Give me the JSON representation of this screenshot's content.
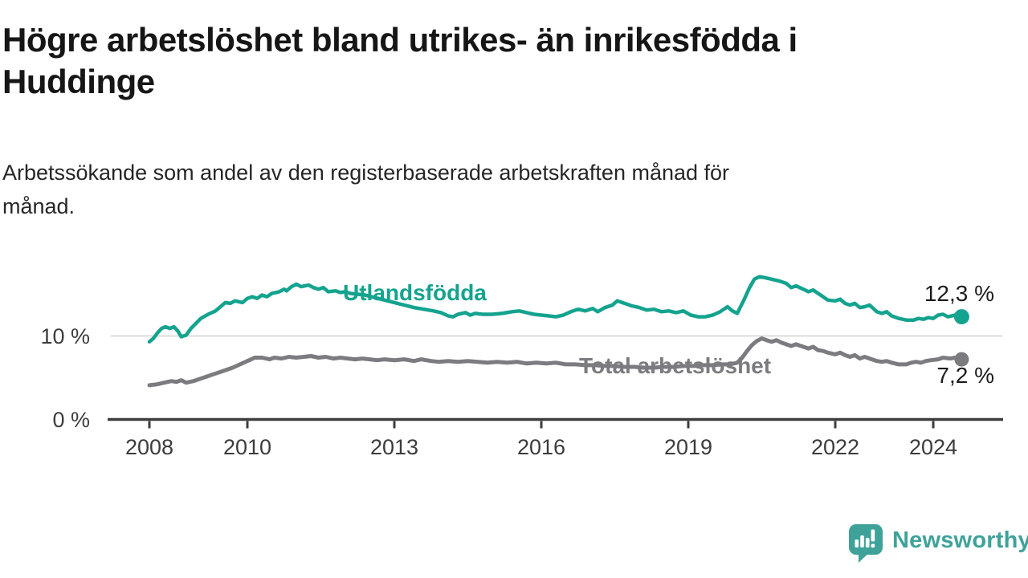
{
  "header": {
    "title": "Högre arbetslöshet bland utrikes- än inrikesfödda i Huddinge",
    "subtitle": "Arbetssökande som andel av den registerbaserade arbetskraften månad för månad."
  },
  "footer": {
    "brand": "Newsworthy"
  },
  "colors": {
    "foreign_born_line": "#14a38e",
    "total_line": "#7b7b80",
    "axis": "#3d3d3d",
    "gridline": "#dcdcdc",
    "tick_text": "#3c3c3c",
    "value_text": "#1c1c1c",
    "logo_teal": "#3fa29a"
  },
  "chart_data": {
    "type": "line",
    "title": "Högre arbetslöshet bland utrikes- än inrikesfödda i Huddinge",
    "subtitle": "Arbetssökande som andel av den registerbaserade arbetskraften månad för månad.",
    "xlabel": "",
    "ylabel": "",
    "x_axis": {
      "ticks": [
        2008,
        2010,
        2013,
        2016,
        2019,
        2022,
        2024
      ],
      "range": [
        2007.1,
        2025.4
      ]
    },
    "y_axis": {
      "ticks": [
        {
          "value": 10,
          "label": "10 %"
        },
        {
          "value": 0,
          "label": "0 %"
        }
      ],
      "range": [
        0,
        19
      ],
      "grid_values": [
        10
      ]
    },
    "legend_position": "inline-labels",
    "series": [
      {
        "name": "Utlandsfödda",
        "label": "Utlandsfödda",
        "end_label": "12,3 %",
        "end_value": 12.3,
        "color": "#14a38e",
        "points": [
          [
            2008.0,
            9.3
          ],
          [
            2008.08,
            9.7
          ],
          [
            2008.17,
            10.4
          ],
          [
            2008.25,
            10.9
          ],
          [
            2008.33,
            11.1
          ],
          [
            2008.42,
            10.9
          ],
          [
            2008.5,
            11.1
          ],
          [
            2008.58,
            10.6
          ],
          [
            2008.65,
            9.9
          ],
          [
            2008.75,
            10.1
          ],
          [
            2008.85,
            10.9
          ],
          [
            2008.95,
            11.5
          ],
          [
            2009.05,
            12.1
          ],
          [
            2009.2,
            12.6
          ],
          [
            2009.35,
            13.0
          ],
          [
            2009.45,
            13.5
          ],
          [
            2009.55,
            14.0
          ],
          [
            2009.65,
            13.9
          ],
          [
            2009.75,
            14.2
          ],
          [
            2009.9,
            14.0
          ],
          [
            2010.0,
            14.5
          ],
          [
            2010.1,
            14.7
          ],
          [
            2010.2,
            14.5
          ],
          [
            2010.3,
            14.9
          ],
          [
            2010.4,
            14.7
          ],
          [
            2010.5,
            15.1
          ],
          [
            2010.65,
            15.3
          ],
          [
            2010.75,
            15.6
          ],
          [
            2010.8,
            15.4
          ],
          [
            2010.9,
            15.9
          ],
          [
            2011.0,
            16.2
          ],
          [
            2011.1,
            15.9
          ],
          [
            2011.25,
            16.1
          ],
          [
            2011.35,
            15.8
          ],
          [
            2011.45,
            15.6
          ],
          [
            2011.55,
            15.8
          ],
          [
            2011.65,
            15.3
          ],
          [
            2011.8,
            15.4
          ],
          [
            2011.9,
            15.2
          ],
          [
            2012.0,
            15.3
          ],
          [
            2012.1,
            15.1
          ],
          [
            2012.25,
            15.0
          ],
          [
            2012.4,
            14.9
          ],
          [
            2012.6,
            14.6
          ],
          [
            2012.8,
            14.3
          ],
          [
            2013.0,
            14.0
          ],
          [
            2013.2,
            13.7
          ],
          [
            2013.4,
            13.4
          ],
          [
            2013.6,
            13.2
          ],
          [
            2013.8,
            13.0
          ],
          [
            2013.95,
            12.8
          ],
          [
            2014.1,
            12.4
          ],
          [
            2014.2,
            12.3
          ],
          [
            2014.3,
            12.6
          ],
          [
            2014.45,
            12.8
          ],
          [
            2014.55,
            12.5
          ],
          [
            2014.65,
            12.7
          ],
          [
            2014.8,
            12.6
          ],
          [
            2015.0,
            12.6
          ],
          [
            2015.2,
            12.7
          ],
          [
            2015.4,
            12.9
          ],
          [
            2015.55,
            13.0
          ],
          [
            2015.7,
            12.8
          ],
          [
            2015.85,
            12.6
          ],
          [
            2016.0,
            12.5
          ],
          [
            2016.15,
            12.4
          ],
          [
            2016.3,
            12.3
          ],
          [
            2016.45,
            12.5
          ],
          [
            2016.6,
            12.9
          ],
          [
            2016.75,
            13.2
          ],
          [
            2016.9,
            13.0
          ],
          [
            2017.05,
            13.3
          ],
          [
            2017.15,
            12.9
          ],
          [
            2017.3,
            13.4
          ],
          [
            2017.45,
            13.7
          ],
          [
            2017.55,
            14.2
          ],
          [
            2017.7,
            13.9
          ],
          [
            2017.85,
            13.6
          ],
          [
            2018.0,
            13.4
          ],
          [
            2018.15,
            13.1
          ],
          [
            2018.3,
            13.2
          ],
          [
            2018.45,
            12.9
          ],
          [
            2018.6,
            13.0
          ],
          [
            2018.75,
            12.8
          ],
          [
            2018.9,
            13.0
          ],
          [
            2019.05,
            12.5
          ],
          [
            2019.2,
            12.3
          ],
          [
            2019.35,
            12.3
          ],
          [
            2019.5,
            12.5
          ],
          [
            2019.65,
            12.9
          ],
          [
            2019.8,
            13.5
          ],
          [
            2019.9,
            13.0
          ],
          [
            2020.0,
            12.7
          ],
          [
            2020.15,
            14.5
          ],
          [
            2020.25,
            15.8
          ],
          [
            2020.35,
            16.8
          ],
          [
            2020.45,
            17.1
          ],
          [
            2020.55,
            17.0
          ],
          [
            2020.7,
            16.8
          ],
          [
            2020.85,
            16.6
          ],
          [
            2021.0,
            16.3
          ],
          [
            2021.1,
            15.8
          ],
          [
            2021.2,
            16.0
          ],
          [
            2021.35,
            15.6
          ],
          [
            2021.45,
            15.3
          ],
          [
            2021.55,
            15.5
          ],
          [
            2021.65,
            15.1
          ],
          [
            2021.75,
            14.7
          ],
          [
            2021.85,
            14.3
          ],
          [
            2022.0,
            14.2
          ],
          [
            2022.1,
            14.4
          ],
          [
            2022.2,
            13.9
          ],
          [
            2022.3,
            13.7
          ],
          [
            2022.4,
            13.9
          ],
          [
            2022.5,
            13.4
          ],
          [
            2022.6,
            13.5
          ],
          [
            2022.7,
            13.7
          ],
          [
            2022.85,
            12.9
          ],
          [
            2022.95,
            12.7
          ],
          [
            2023.05,
            12.9
          ],
          [
            2023.15,
            12.4
          ],
          [
            2023.3,
            12.1
          ],
          [
            2023.45,
            11.9
          ],
          [
            2023.6,
            11.9
          ],
          [
            2023.7,
            12.1
          ],
          [
            2023.8,
            12.0
          ],
          [
            2023.9,
            12.2
          ],
          [
            2024.0,
            12.1
          ],
          [
            2024.1,
            12.5
          ],
          [
            2024.2,
            12.6
          ],
          [
            2024.3,
            12.3
          ],
          [
            2024.45,
            12.5
          ],
          [
            2024.58,
            12.3
          ]
        ]
      },
      {
        "name": "Total arbetslöshet",
        "label": "Total arbetslöshet",
        "end_label": "7,2 %",
        "end_value": 7.2,
        "color": "#7b7b80",
        "points": [
          [
            2008.0,
            4.1
          ],
          [
            2008.15,
            4.2
          ],
          [
            2008.3,
            4.4
          ],
          [
            2008.45,
            4.6
          ],
          [
            2008.55,
            4.5
          ],
          [
            2008.65,
            4.7
          ],
          [
            2008.75,
            4.4
          ],
          [
            2008.9,
            4.6
          ],
          [
            2009.0,
            4.8
          ],
          [
            2009.15,
            5.1
          ],
          [
            2009.3,
            5.4
          ],
          [
            2009.5,
            5.8
          ],
          [
            2009.7,
            6.2
          ],
          [
            2009.85,
            6.6
          ],
          [
            2010.0,
            7.0
          ],
          [
            2010.15,
            7.4
          ],
          [
            2010.3,
            7.4
          ],
          [
            2010.45,
            7.2
          ],
          [
            2010.55,
            7.4
          ],
          [
            2010.7,
            7.3
          ],
          [
            2010.85,
            7.5
          ],
          [
            2011.0,
            7.4
          ],
          [
            2011.15,
            7.5
          ],
          [
            2011.3,
            7.6
          ],
          [
            2011.45,
            7.4
          ],
          [
            2011.6,
            7.5
          ],
          [
            2011.75,
            7.3
          ],
          [
            2011.9,
            7.4
          ],
          [
            2012.05,
            7.3
          ],
          [
            2012.2,
            7.2
          ],
          [
            2012.35,
            7.3
          ],
          [
            2012.5,
            7.2
          ],
          [
            2012.65,
            7.1
          ],
          [
            2012.8,
            7.2
          ],
          [
            2013.0,
            7.1
          ],
          [
            2013.2,
            7.2
          ],
          [
            2013.4,
            7.0
          ],
          [
            2013.55,
            7.2
          ],
          [
            2013.75,
            7.0
          ],
          [
            2013.9,
            6.9
          ],
          [
            2014.1,
            7.0
          ],
          [
            2014.3,
            6.9
          ],
          [
            2014.5,
            7.0
          ],
          [
            2014.7,
            6.9
          ],
          [
            2014.9,
            6.8
          ],
          [
            2015.1,
            6.9
          ],
          [
            2015.3,
            6.8
          ],
          [
            2015.5,
            6.9
          ],
          [
            2015.7,
            6.7
          ],
          [
            2015.9,
            6.8
          ],
          [
            2016.1,
            6.7
          ],
          [
            2016.3,
            6.8
          ],
          [
            2016.5,
            6.6
          ],
          [
            2016.7,
            6.6
          ],
          [
            2016.9,
            6.5
          ],
          [
            2017.1,
            6.5
          ],
          [
            2017.3,
            6.4
          ],
          [
            2017.5,
            6.4
          ],
          [
            2017.7,
            6.3
          ],
          [
            2017.9,
            6.3
          ],
          [
            2018.1,
            6.2
          ],
          [
            2018.3,
            6.2
          ],
          [
            2018.5,
            6.3
          ],
          [
            2018.7,
            6.3
          ],
          [
            2018.9,
            6.4
          ],
          [
            2019.1,
            6.4
          ],
          [
            2019.3,
            6.5
          ],
          [
            2019.5,
            6.5
          ],
          [
            2019.7,
            6.6
          ],
          [
            2019.85,
            6.6
          ],
          [
            2020.0,
            6.8
          ],
          [
            2020.1,
            7.4
          ],
          [
            2020.2,
            8.2
          ],
          [
            2020.3,
            8.9
          ],
          [
            2020.4,
            9.4
          ],
          [
            2020.5,
            9.7
          ],
          [
            2020.6,
            9.5
          ],
          [
            2020.7,
            9.3
          ],
          [
            2020.8,
            9.5
          ],
          [
            2020.9,
            9.2
          ],
          [
            2021.0,
            9.0
          ],
          [
            2021.1,
            8.8
          ],
          [
            2021.2,
            9.0
          ],
          [
            2021.35,
            8.7
          ],
          [
            2021.45,
            8.5
          ],
          [
            2021.55,
            8.7
          ],
          [
            2021.65,
            8.3
          ],
          [
            2021.75,
            8.2
          ],
          [
            2021.85,
            8.0
          ],
          [
            2022.0,
            7.8
          ],
          [
            2022.1,
            8.0
          ],
          [
            2022.2,
            7.7
          ],
          [
            2022.3,
            7.5
          ],
          [
            2022.4,
            7.7
          ],
          [
            2022.5,
            7.3
          ],
          [
            2022.6,
            7.5
          ],
          [
            2022.7,
            7.3
          ],
          [
            2022.85,
            7.0
          ],
          [
            2022.95,
            6.9
          ],
          [
            2023.05,
            7.0
          ],
          [
            2023.15,
            6.8
          ],
          [
            2023.3,
            6.6
          ],
          [
            2023.45,
            6.6
          ],
          [
            2023.55,
            6.8
          ],
          [
            2023.65,
            6.9
          ],
          [
            2023.75,
            6.8
          ],
          [
            2023.85,
            7.0
          ],
          [
            2023.95,
            7.1
          ],
          [
            2024.1,
            7.2
          ],
          [
            2024.2,
            7.4
          ],
          [
            2024.35,
            7.3
          ],
          [
            2024.45,
            7.4
          ],
          [
            2024.58,
            7.2
          ]
        ]
      }
    ]
  }
}
